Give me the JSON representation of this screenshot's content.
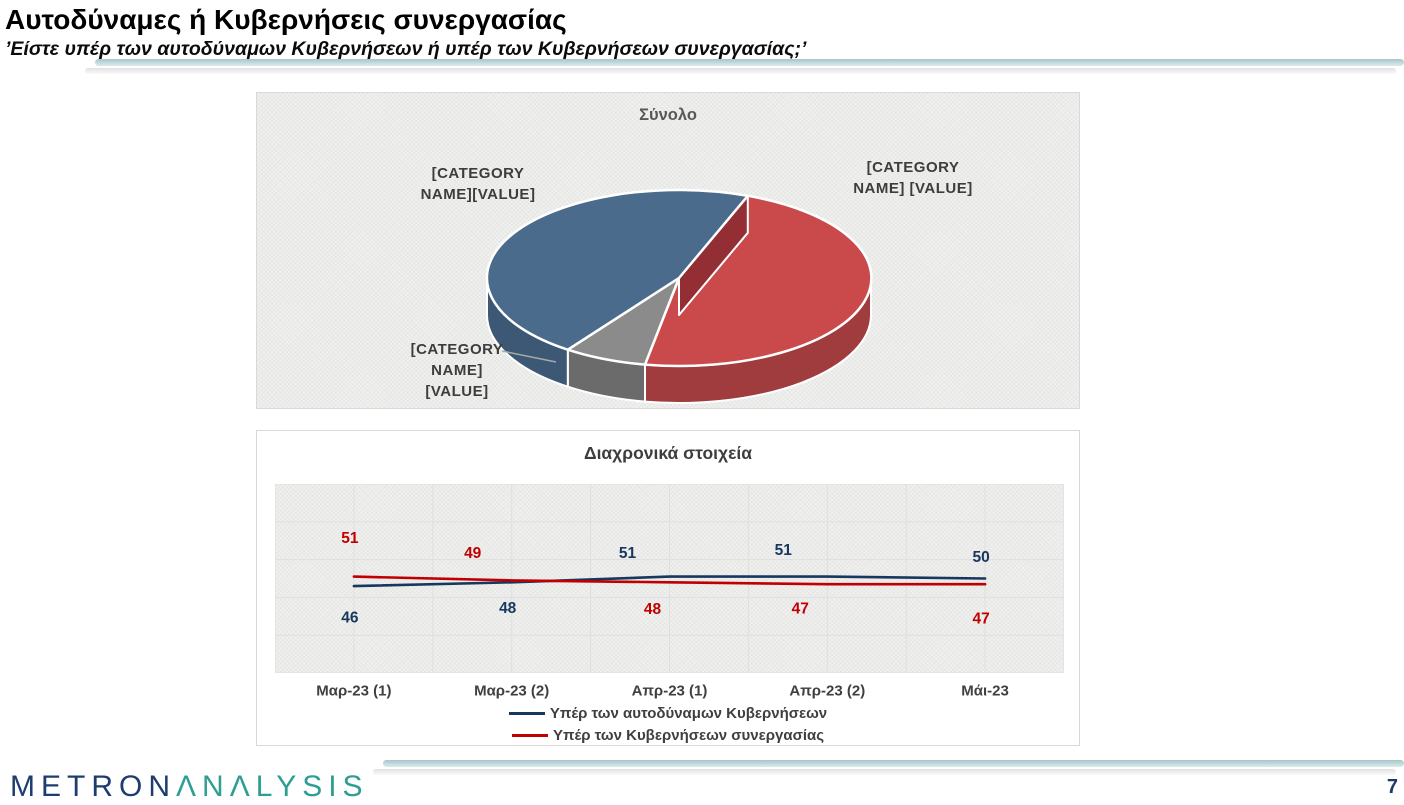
{
  "slide": {
    "title": "Αυτοδύναμες ή Κυβερνήσεις συνεργασίας",
    "subtitle": "’Είστε υπέρ των αυτοδύναμων Κυβερνήσεων ή υπέρ των Κυβερνήσεων συνεργασίας;’",
    "page_number": "7",
    "logo": {
      "part1": "METRON",
      "part2": "ΛNΛLYSIS"
    }
  },
  "pie": {
    "title": "Σύνολο",
    "labels": {
      "left": [
        "[CATEGORY",
        "NAME][VALUE]"
      ],
      "right": [
        "[CATEGORY",
        "NAME] [VALUE]"
      ],
      "small_slice": [
        "[CATEGORY",
        "NAME]",
        "[VALUE]"
      ]
    }
  },
  "line": {
    "title": "Διαχρονικά στοιχεία"
  },
  "chart_data": [
    {
      "type": "pie",
      "title": "Σύνολο",
      "labels_are_placeholders": true,
      "start_angle_deg": 69,
      "slices": [
        {
          "label": "[CATEGORY NAME] [VALUE]",
          "color": "#ca4a4b",
          "side_color": "#a03c3e",
          "edge_wall_color": "#932f34",
          "pct_visual_estimate": 47
        },
        {
          "label": "[CATEGORY NAME] [VALUE]",
          "color": "#8b8b8b",
          "side_color": "#6b6b6b",
          "edge_wall_color": "#6b6b6b",
          "pct_visual_estimate": 7
        },
        {
          "label": "[CATEGORY NAME][VALUE]",
          "color": "#4a6b8c",
          "side_color": "#3c5875",
          "edge_wall_color": "#3c5875",
          "pct_visual_estimate": 46
        }
      ]
    },
    {
      "type": "line",
      "title": "Διαχρονικά στοιχεία",
      "categories": [
        "Μαρ-23 (1)",
        "Μαρ-23 (2)",
        "Απρ-23 (1)",
        "Απρ-23 (2)",
        "Μάι-23"
      ],
      "series": [
        {
          "name": "Υπέρ των αυτοδύναμων Κυβερνήσεων",
          "color": "#17375e",
          "values": [
            46,
            48,
            51,
            51,
            50
          ]
        },
        {
          "name": "Υπέρ των Κυβερνήσεων συνεργασίας",
          "color": "#c00000",
          "values": [
            51,
            49,
            48,
            47,
            47
          ]
        }
      ],
      "ylim": [
        0,
        100
      ],
      "grid": true,
      "legend_position": "bottom"
    }
  ]
}
